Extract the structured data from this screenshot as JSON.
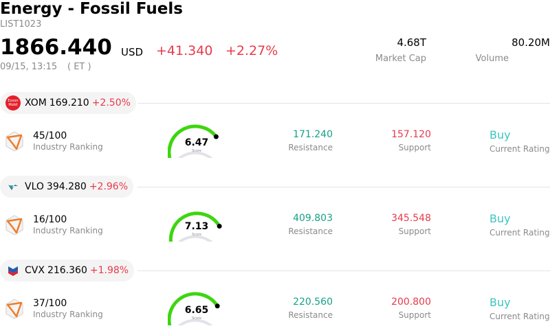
{
  "header": {
    "title": "Energy - Fossil Fuels",
    "code": "LIST1023",
    "price": "1866.440",
    "currency": "USD",
    "change": "+41.340",
    "change_pct": "+2.27%",
    "time": "09/15, 13:15",
    "timezone": "( ET )",
    "stats": [
      {
        "value": "4.68T",
        "label": "Market Cap"
      },
      {
        "value": "80.20M",
        "label": "Volume"
      }
    ]
  },
  "stocks": [
    {
      "logo_text": "Exxon Mobil",
      "ticker": "XOM",
      "price": "169.210",
      "change": "+2.50%",
      "ranking": "45/100",
      "ranking_label": "Industry Ranking",
      "score": "6.47",
      "score_label": "Score",
      "resistance": "171.240",
      "resistance_label": "Resistance",
      "support": "157.120",
      "support_label": "Support",
      "rating": "Buy",
      "rating_label": "Current Rating"
    },
    {
      "ticker": "VLO",
      "price": "394.280",
      "change": "+2.96%",
      "ranking": "16/100",
      "ranking_label": "Industry Ranking",
      "score": "7.13",
      "score_label": "Score",
      "resistance": "409.803",
      "resistance_label": "Resistance",
      "support": "345.548",
      "support_label": "Support",
      "rating": "Buy",
      "rating_label": "Current Rating"
    },
    {
      "ticker": "CVX",
      "price": "216.360",
      "change": "+1.98%",
      "ranking": "37/100",
      "ranking_label": "Industry Ranking",
      "score": "6.65",
      "score_label": "Score",
      "resistance": "220.560",
      "resistance_label": "Resistance",
      "support": "200.800",
      "support_label": "Support",
      "rating": "Buy",
      "rating_label": "Current Rating"
    }
  ]
}
